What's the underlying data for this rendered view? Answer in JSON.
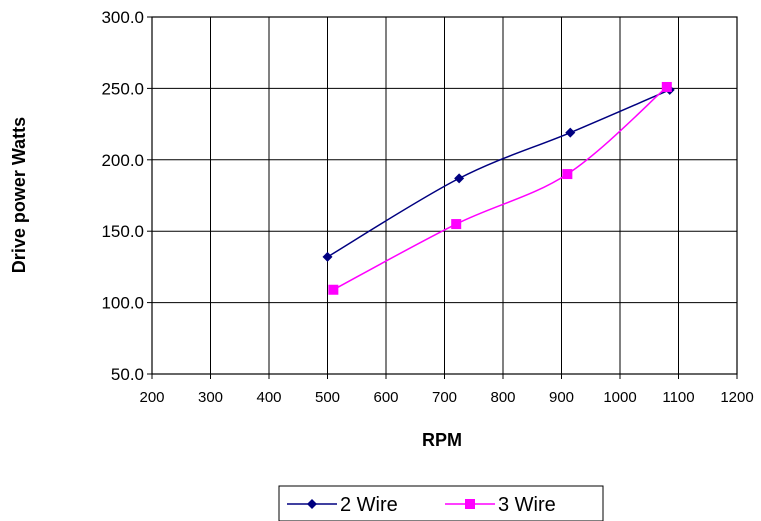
{
  "chart_data": {
    "type": "line",
    "xlabel": "RPM",
    "ylabel": "Drive power Watts",
    "xlim": [
      200,
      1200
    ],
    "ylim": [
      50,
      300
    ],
    "x_ticks": [
      "200",
      "300",
      "400",
      "500",
      "600",
      "700",
      "800",
      "900",
      "1000",
      "1100",
      "1200"
    ],
    "y_ticks": [
      "50.0",
      "100.0",
      "150.0",
      "200.0",
      "250.0",
      "300.0"
    ],
    "grid": true,
    "legend_position": "bottom",
    "series": [
      {
        "name": "2 Wire",
        "color": "#000080",
        "marker": "diamond",
        "x": [
          500,
          725,
          915,
          1085
        ],
        "y": [
          132,
          187,
          219,
          249
        ]
      },
      {
        "name": "3 Wire",
        "color": "#ff00ff",
        "marker": "square",
        "x": [
          510,
          720,
          910,
          1080
        ],
        "y": [
          109,
          155,
          190,
          251
        ]
      }
    ]
  }
}
